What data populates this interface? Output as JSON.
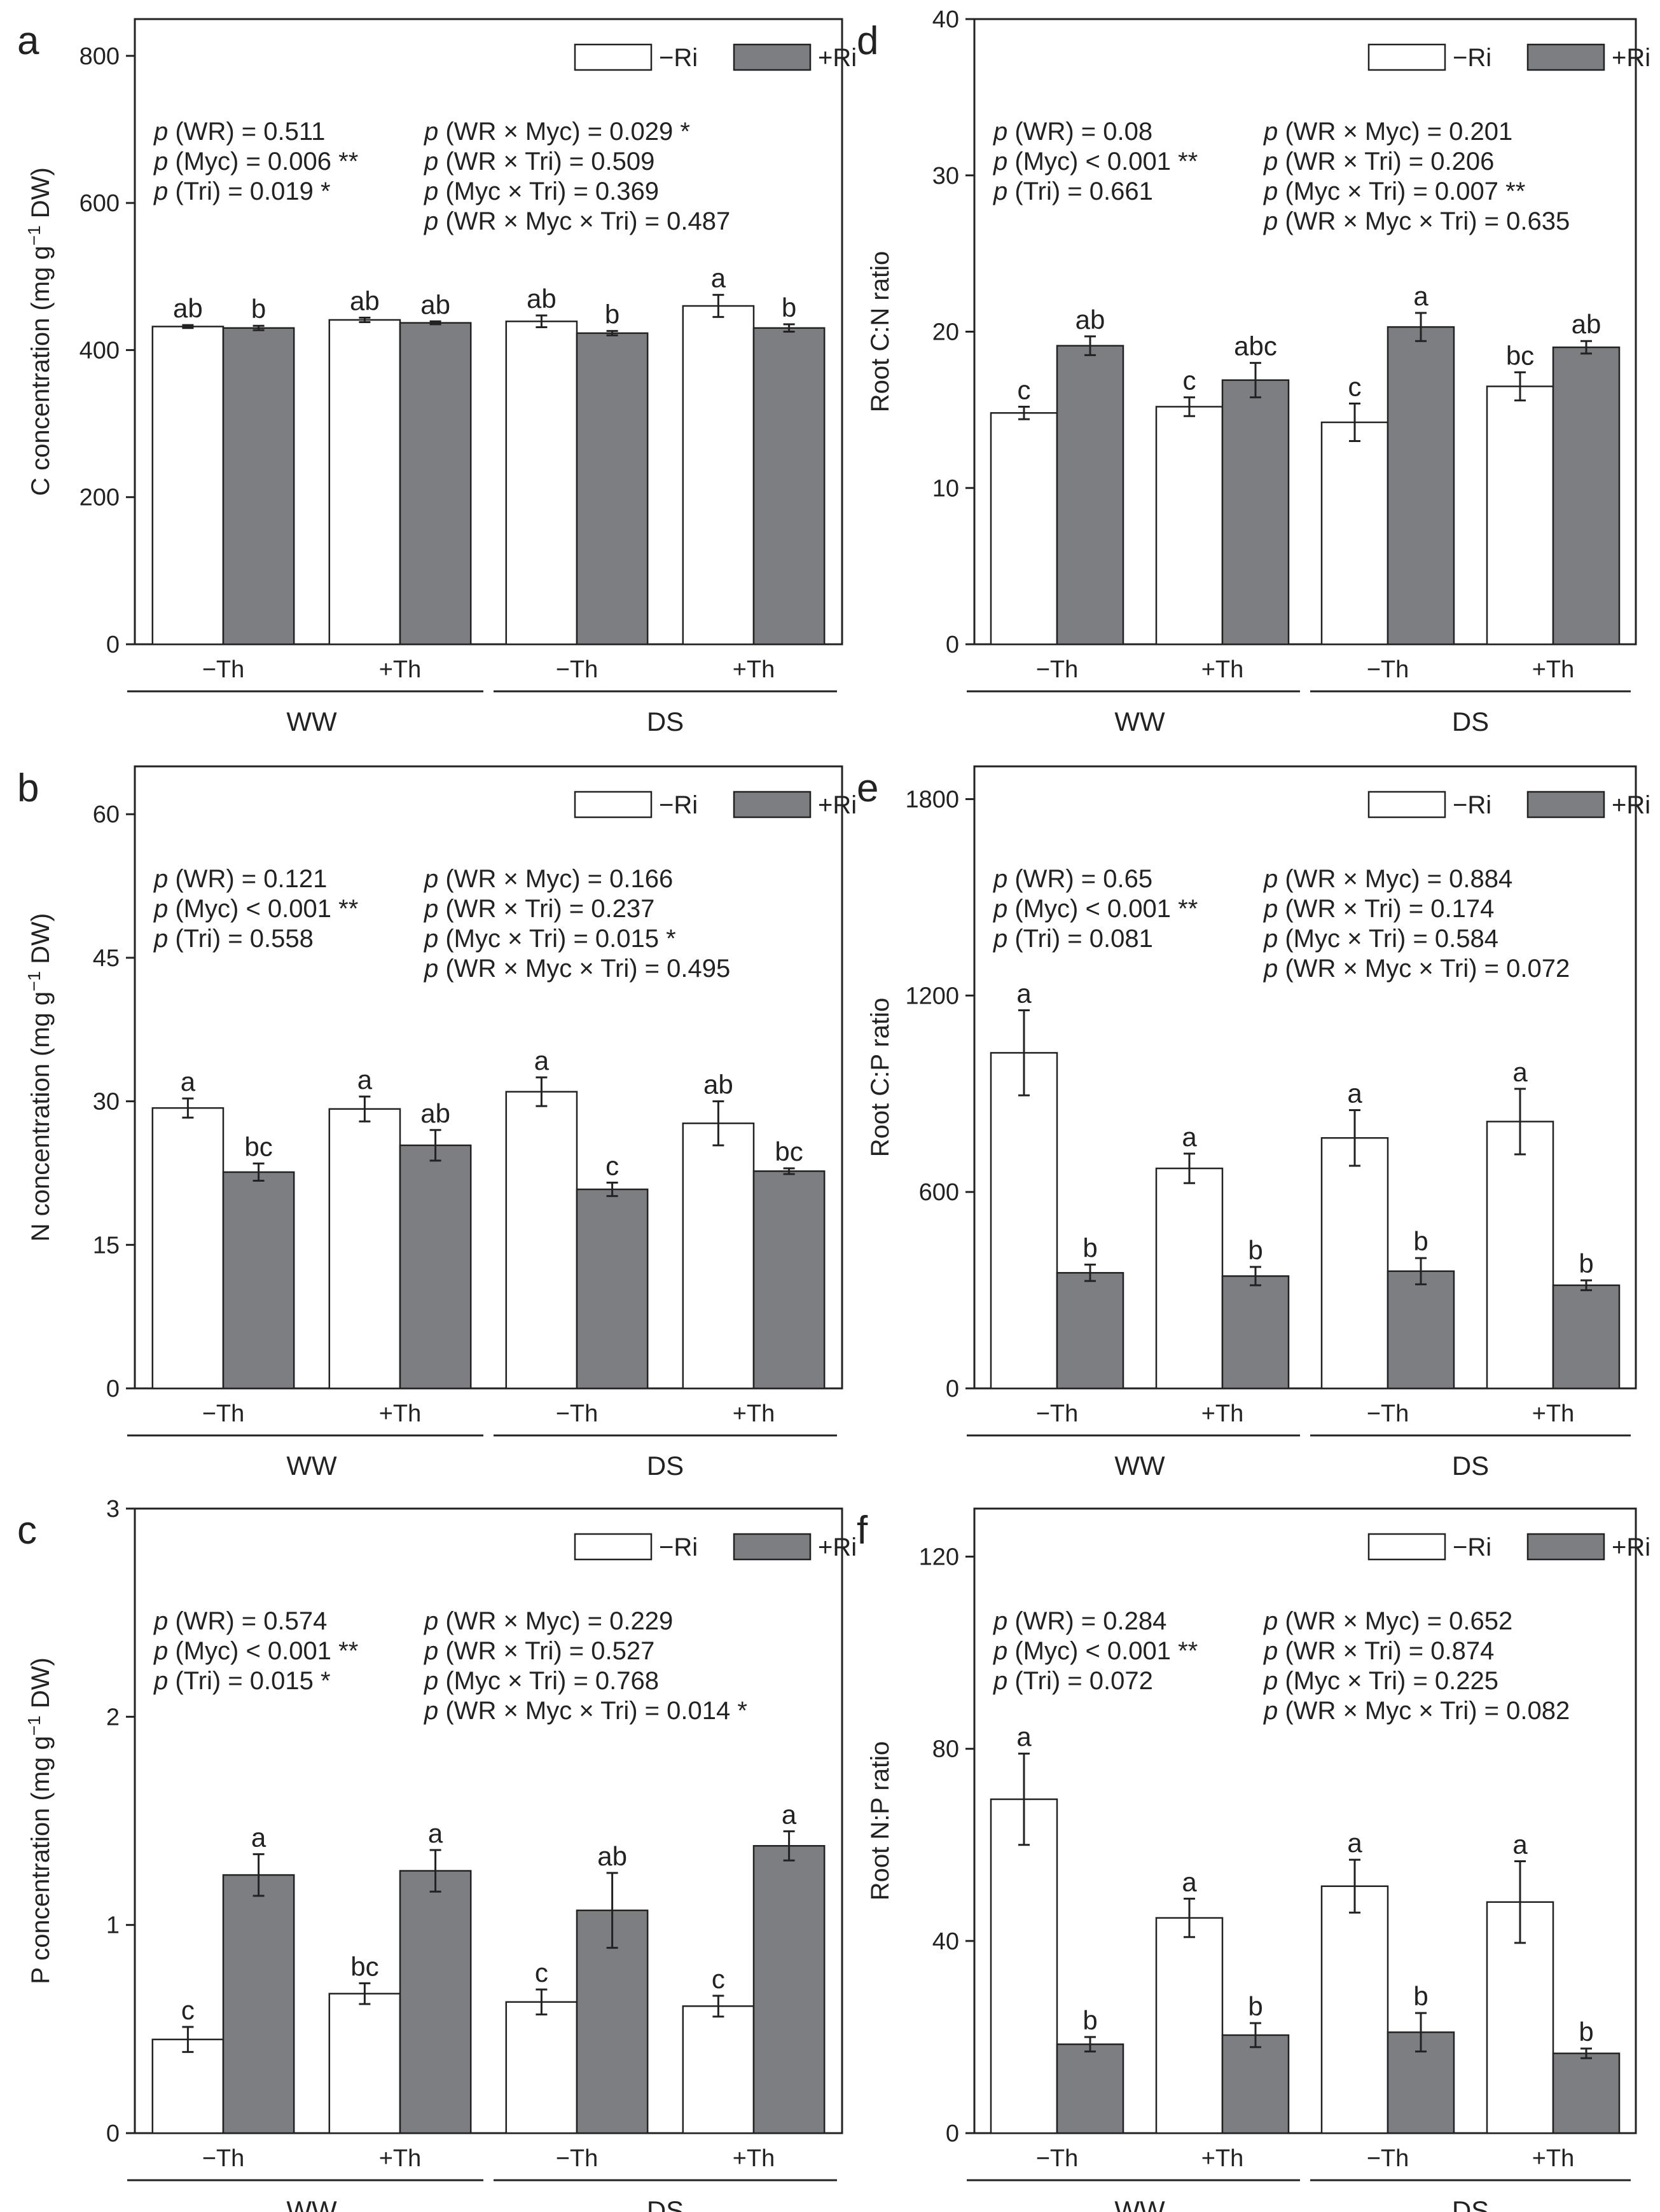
{
  "colors": {
    "minus_ri": "#ffffff",
    "plus_ri": "#7c7e81",
    "stroke": "#222222"
  },
  "legend": [
    "−Ri",
    "+Ri"
  ],
  "chart_data": [
    {
      "panel": "a",
      "type": "bar",
      "ylabel": "C concentration (mg g−1 DW)",
      "ylim": [
        0,
        850
      ],
      "yticks": [
        0,
        200,
        400,
        600,
        800
      ],
      "categories": [
        "−Th",
        "+Th",
        "−Th",
        "+Th"
      ],
      "groups": [
        "WW",
        "DS"
      ],
      "series": [
        {
          "name": "−Ri",
          "values": [
            432,
            441,
            439,
            460
          ],
          "errors": [
            2,
            3,
            8,
            15
          ],
          "letters": [
            "ab",
            "ab",
            "ab",
            "a"
          ]
        },
        {
          "name": "+Ri",
          "values": [
            430,
            437,
            423,
            430
          ],
          "errors": [
            3,
            2,
            3,
            5
          ],
          "letters": [
            "b",
            "ab",
            "b",
            "b"
          ]
        }
      ],
      "stats_left": [
        "p (WR) = 0.511",
        "p (Myc) = 0.006 **",
        "p (Tri) = 0.019 *"
      ],
      "stats_right": [
        "p (WR × Myc) = 0.029 *",
        "p (WR × Tri) = 0.509",
        "p (Myc × Tri) = 0.369",
        "p (WR × Myc × Tri) = 0.487"
      ]
    },
    {
      "panel": "b",
      "type": "bar",
      "ylabel": "N concentration (mg g−1 DW)",
      "ylim": [
        0,
        65
      ],
      "yticks": [
        0,
        15,
        30,
        45,
        60
      ],
      "categories": [
        "−Th",
        "+Th",
        "−Th",
        "+Th"
      ],
      "groups": [
        "WW",
        "DS"
      ],
      "series": [
        {
          "name": "−Ri",
          "values": [
            29.3,
            29.2,
            31.0,
            27.7
          ],
          "errors": [
            1.0,
            1.3,
            1.5,
            2.3
          ],
          "letters": [
            "a",
            "a",
            "a",
            "ab"
          ]
        },
        {
          "name": "+Ri",
          "values": [
            22.6,
            25.4,
            20.8,
            22.7
          ],
          "errors": [
            0.9,
            1.6,
            0.7,
            0.3
          ],
          "letters": [
            "bc",
            "ab",
            "c",
            "bc"
          ]
        }
      ],
      "stats_left": [
        "p (WR) = 0.121",
        "p (Myc) < 0.001 **",
        "p (Tri) = 0.558"
      ],
      "stats_right": [
        "p (WR × Myc) = 0.166",
        "p (WR × Tri) = 0.237",
        "p (Myc × Tri) = 0.015 *",
        "p (WR × Myc × Tri) = 0.495"
      ]
    },
    {
      "panel": "c",
      "type": "bar",
      "ylabel": "P concentration (mg g−1 DW)",
      "ylim": [
        0,
        3
      ],
      "yticks": [
        0,
        1,
        2,
        3
      ],
      "categories": [
        "−Th",
        "+Th",
        "−Th",
        "+Th"
      ],
      "groups": [
        "WW",
        "DS"
      ],
      "series": [
        {
          "name": "−Ri",
          "values": [
            0.45,
            0.67,
            0.63,
            0.61
          ],
          "errors": [
            0.06,
            0.05,
            0.06,
            0.05
          ],
          "letters": [
            "c",
            "bc",
            "c",
            "c"
          ]
        },
        {
          "name": "+Ri",
          "values": [
            1.24,
            1.26,
            1.07,
            1.38
          ],
          "errors": [
            0.1,
            0.1,
            0.18,
            0.07
          ],
          "letters": [
            "a",
            "a",
            "ab",
            "a"
          ]
        }
      ],
      "stats_left": [
        "p (WR) = 0.574",
        "p (Myc) < 0.001 **",
        "p (Tri) = 0.015 *"
      ],
      "stats_right": [
        "p (WR × Myc) = 0.229",
        "p (WR × Tri) = 0.527",
        "p (Myc × Tri) = 0.768",
        "p (WR × Myc × Tri) = 0.014 *"
      ]
    },
    {
      "panel": "d",
      "type": "bar",
      "ylabel": "Root C:N ratio",
      "ylim": [
        0,
        40
      ],
      "yticks": [
        0,
        10,
        20,
        30,
        40
      ],
      "categories": [
        "−Th",
        "+Th",
        "−Th",
        "+Th"
      ],
      "groups": [
        "WW",
        "DS"
      ],
      "series": [
        {
          "name": "−Ri",
          "values": [
            14.8,
            15.2,
            14.2,
            16.5
          ],
          "errors": [
            0.4,
            0.6,
            1.2,
            0.9
          ],
          "letters": [
            "c",
            "c",
            "c",
            "bc"
          ]
        },
        {
          "name": "+Ri",
          "values": [
            19.1,
            16.9,
            20.3,
            19.0
          ],
          "errors": [
            0.6,
            1.1,
            0.9,
            0.4
          ],
          "letters": [
            "ab",
            "abc",
            "a",
            "ab"
          ]
        }
      ],
      "stats_left": [
        "p (WR) = 0.08",
        "p (Myc) < 0.001 **",
        "p (Tri) = 0.661"
      ],
      "stats_right": [
        "p (WR × Myc) = 0.201",
        "p (WR × Tri) = 0.206",
        "p (Myc × Tri) = 0.007 **",
        "p (WR × Myc × Tri) = 0.635"
      ]
    },
    {
      "panel": "e",
      "type": "bar",
      "ylabel": "Root C:P ratio",
      "ylim": [
        0,
        1900
      ],
      "yticks": [
        0,
        600,
        1200,
        1800
      ],
      "categories": [
        "−Th",
        "+Th",
        "−Th",
        "+Th"
      ],
      "groups": [
        "WW",
        "DS"
      ],
      "series": [
        {
          "name": "−Ri",
          "values": [
            1025,
            672,
            765,
            815
          ],
          "errors": [
            130,
            45,
            85,
            100
          ],
          "letters": [
            "a",
            "a",
            "a",
            "a"
          ]
        },
        {
          "name": "+Ri",
          "values": [
            353,
            343,
            358,
            315
          ],
          "errors": [
            25,
            28,
            40,
            15
          ],
          "letters": [
            "b",
            "b",
            "b",
            "b"
          ]
        }
      ],
      "stats_left": [
        "p (WR) = 0.65",
        "p (Myc) < 0.001 **",
        "p (Tri) = 0.081"
      ],
      "stats_right": [
        "p (WR × Myc) = 0.884",
        "p (WR × Tri) = 0.174",
        "p (Myc × Tri) = 0.584",
        "p (WR × Myc × Tri) = 0.072"
      ]
    },
    {
      "panel": "f",
      "type": "bar",
      "ylabel": "Root N:P ratio",
      "ylim": [
        0,
        130
      ],
      "yticks": [
        0,
        40,
        80,
        120
      ],
      "categories": [
        "−Th",
        "+Th",
        "−Th",
        "+Th"
      ],
      "groups": [
        "WW",
        "DS"
      ],
      "series": [
        {
          "name": "−Ri",
          "values": [
            69.5,
            44.8,
            51.4,
            48.1
          ],
          "errors": [
            9.5,
            4.0,
            5.5,
            8.5
          ],
          "letters": [
            "a",
            "a",
            "a",
            "a"
          ]
        },
        {
          "name": "+Ri",
          "values": [
            18.5,
            20.4,
            21.0,
            16.6
          ],
          "errors": [
            1.5,
            2.5,
            4.0,
            1.0
          ],
          "letters": [
            "b",
            "b",
            "b",
            "b"
          ]
        }
      ],
      "stats_left": [
        "p (WR) = 0.284",
        "p (Myc) < 0.001 **",
        "p (Tri) = 0.072"
      ],
      "stats_right": [
        "p (WR × Myc) = 0.652",
        "p (WR × Tri) = 0.874",
        "p (Myc × Tri) = 0.225",
        "p (WR × Myc × Tri) = 0.082"
      ]
    }
  ]
}
